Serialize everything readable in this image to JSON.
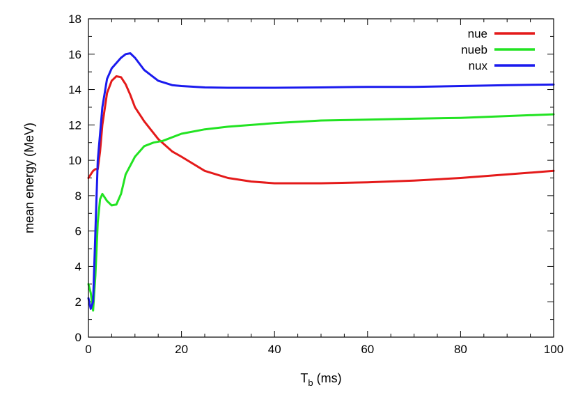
{
  "chart_data": {
    "type": "line",
    "title": "",
    "xlabel_main": "T",
    "xlabel_sub": "b",
    "xlabel_unit": " (ms)",
    "ylabel": "mean energy (MeV)",
    "xlim": [
      0,
      100
    ],
    "ylim": [
      0,
      18
    ],
    "xticks": [
      0,
      20,
      40,
      60,
      80,
      100
    ],
    "yticks": [
      0,
      2,
      4,
      6,
      8,
      10,
      12,
      14,
      16,
      18
    ],
    "grid": false,
    "legend_position": "top-right",
    "series": [
      {
        "name": "nue",
        "color": "#e41a1a",
        "points": [
          [
            0,
            9.0
          ],
          [
            0.5,
            9.2
          ],
          [
            1,
            9.4
          ],
          [
            1.5,
            9.5
          ],
          [
            2,
            9.5
          ],
          [
            2.5,
            10.5
          ],
          [
            3,
            12.0
          ],
          [
            4,
            13.8
          ],
          [
            5,
            14.5
          ],
          [
            6,
            14.75
          ],
          [
            7,
            14.7
          ],
          [
            8,
            14.3
          ],
          [
            9,
            13.7
          ],
          [
            10,
            13.0
          ],
          [
            12,
            12.2
          ],
          [
            15,
            11.2
          ],
          [
            18,
            10.5
          ],
          [
            20,
            10.2
          ],
          [
            25,
            9.4
          ],
          [
            30,
            9.0
          ],
          [
            35,
            8.8
          ],
          [
            40,
            8.7
          ],
          [
            50,
            8.7
          ],
          [
            60,
            8.75
          ],
          [
            70,
            8.85
          ],
          [
            80,
            9.0
          ],
          [
            90,
            9.2
          ],
          [
            100,
            9.4
          ]
        ]
      },
      {
        "name": "nueb",
        "color": "#22e322",
        "points": [
          [
            0,
            3.0
          ],
          [
            0.5,
            2.5
          ],
          [
            1,
            1.5
          ],
          [
            1.5,
            3.5
          ],
          [
            2,
            6.5
          ],
          [
            2.5,
            7.8
          ],
          [
            3,
            8.1
          ],
          [
            4,
            7.7
          ],
          [
            5,
            7.45
          ],
          [
            6,
            7.5
          ],
          [
            7,
            8.1
          ],
          [
            8,
            9.2
          ],
          [
            10,
            10.2
          ],
          [
            12,
            10.8
          ],
          [
            14,
            11.0
          ],
          [
            16,
            11.1
          ],
          [
            20,
            11.5
          ],
          [
            25,
            11.75
          ],
          [
            30,
            11.9
          ],
          [
            40,
            12.1
          ],
          [
            50,
            12.25
          ],
          [
            60,
            12.3
          ],
          [
            70,
            12.35
          ],
          [
            80,
            12.4
          ],
          [
            90,
            12.5
          ],
          [
            100,
            12.6
          ]
        ]
      },
      {
        "name": "nux",
        "color": "#1a1aee",
        "points": [
          [
            0,
            2.2
          ],
          [
            0.5,
            1.6
          ],
          [
            1,
            2.0
          ],
          [
            1.5,
            6.0
          ],
          [
            2,
            10.0
          ],
          [
            3,
            13.0
          ],
          [
            4,
            14.6
          ],
          [
            5,
            15.2
          ],
          [
            6,
            15.5
          ],
          [
            7,
            15.8
          ],
          [
            8,
            16.0
          ],
          [
            9,
            16.05
          ],
          [
            10,
            15.8
          ],
          [
            12,
            15.1
          ],
          [
            15,
            14.5
          ],
          [
            18,
            14.25
          ],
          [
            20,
            14.2
          ],
          [
            25,
            14.12
          ],
          [
            30,
            14.1
          ],
          [
            40,
            14.1
          ],
          [
            50,
            14.12
          ],
          [
            60,
            14.15
          ],
          [
            70,
            14.15
          ],
          [
            80,
            14.2
          ],
          [
            90,
            14.25
          ],
          [
            100,
            14.28
          ]
        ]
      }
    ]
  }
}
